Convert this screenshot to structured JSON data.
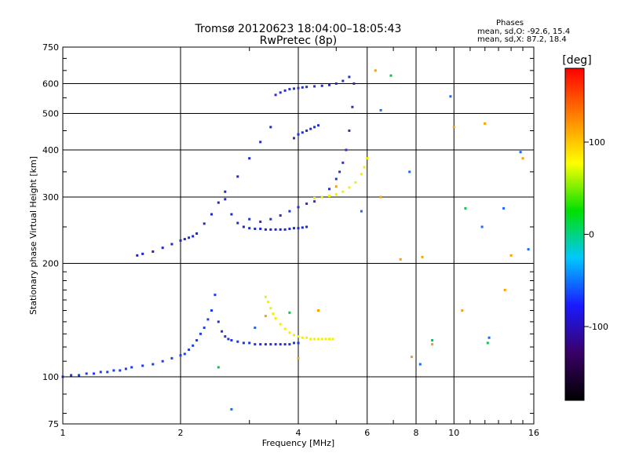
{
  "chart_data": {
    "type": "scatter",
    "title": "Tromsø 20120623 18:04:00–18:05:43",
    "subtitle": "RwPretec (8p)",
    "stats": {
      "header": "Phases",
      "line_o": "mean, sd,O: -92.6, 15.4",
      "line_x": "mean, sd,X:  87.2, 18.4"
    },
    "xlabel": "Frequency [MHz]",
    "ylabel": "Stationary phase Virtual Height [km]",
    "x_scale": "log",
    "y_scale": "log",
    "xlim": [
      1,
      16
    ],
    "ylim": [
      75,
      750
    ],
    "x_ticks": [
      1,
      2,
      4,
      6,
      8,
      10,
      16
    ],
    "x_tick_labels": [
      "1",
      "2",
      "4",
      "6",
      "8",
      "10",
      "16"
    ],
    "y_ticks": [
      75,
      100,
      200,
      300,
      400,
      500,
      600,
      750
    ],
    "y_tick_labels": [
      "75",
      "100",
      "200",
      "300",
      "400",
      "500",
      "600",
      "750"
    ],
    "grid": true,
    "colorbar": {
      "label": "[deg]",
      "range": [
        -180,
        180
      ],
      "ticks": [
        100,
        0,
        -100
      ],
      "tick_labels": [
        "100",
        "0",
        "-100"
      ],
      "colors": [
        "#000000",
        "#3a0066",
        "#1a1aff",
        "#00c8ff",
        "#00e000",
        "#ffff00",
        "#ff8000",
        "#ff0000"
      ]
    },
    "series": [
      {
        "phase": -100,
        "color": "#1e3cf0",
        "x": [
          1.0,
          1.05,
          1.1,
          1.15,
          1.2,
          1.25,
          1.3,
          1.35,
          1.4,
          1.45,
          1.5,
          1.6,
          1.7,
          1.8,
          1.9,
          2.0,
          2.05,
          2.1,
          2.15,
          2.2,
          2.25,
          2.3,
          2.35,
          2.4,
          2.45
        ],
        "y": [
          100,
          101,
          101,
          102,
          102,
          103,
          103,
          104,
          104,
          105,
          106,
          107,
          108,
          110,
          112,
          114,
          115,
          118,
          121,
          125,
          130,
          135,
          142,
          150,
          165
        ]
      },
      {
        "phase": -100,
        "color": "#1e32e6",
        "x": [
          2.5,
          2.55,
          2.6,
          2.65,
          2.7,
          2.8,
          2.9,
          3.0,
          3.1,
          3.2,
          3.3,
          3.4,
          3.5,
          3.6,
          3.7,
          3.8,
          3.9,
          4.0
        ],
        "y": [
          140,
          132,
          128,
          126,
          125,
          124,
          123,
          123,
          122,
          122,
          122,
          122,
          122,
          122,
          122,
          122,
          123,
          123
        ]
      },
      {
        "phase": 100,
        "color": "#f0f000",
        "x": [
          3.3,
          3.35,
          3.4,
          3.45,
          3.5,
          3.6,
          3.7,
          3.8,
          3.9,
          4.0,
          4.1,
          4.2,
          4.3,
          4.4,
          4.5,
          4.6,
          4.7,
          4.8,
          4.9
        ],
        "y": [
          163,
          158,
          152,
          147,
          143,
          138,
          134,
          131,
          129,
          128,
          127,
          127,
          126,
          126,
          126,
          126,
          126,
          126,
          126
        ]
      },
      {
        "phase": -110,
        "color": "#1e28d2",
        "x": [
          2.6,
          2.7,
          2.8,
          2.9,
          3.0,
          3.1,
          3.2,
          3.3,
          3.4,
          3.5,
          3.6,
          3.7,
          3.8,
          3.9,
          4.0,
          4.1,
          4.2
        ],
        "y": [
          296,
          270,
          256,
          250,
          248,
          247,
          247,
          246,
          246,
          246,
          246,
          246,
          247,
          248,
          248,
          249,
          250
        ]
      },
      {
        "phase": -110,
        "color": "#2832c8",
        "x": [
          3.0,
          3.2,
          3.4,
          3.6,
          3.8,
          4.0,
          4.2,
          4.4,
          4.6,
          4.8,
          5.0,
          5.1,
          5.2,
          5.3,
          5.4,
          5.5,
          5.55
        ],
        "y": [
          262,
          258,
          262,
          268,
          275,
          282,
          288,
          292,
          300,
          315,
          335,
          350,
          370,
          400,
          450,
          520,
          600
        ]
      },
      {
        "phase": 100,
        "color": "#f0f000",
        "x": [
          4.4,
          4.6,
          4.8,
          5.0,
          5.2,
          5.4,
          5.6,
          5.8,
          5.9,
          6.0
        ],
        "y": [
          298,
          300,
          302,
          305,
          310,
          318,
          328,
          345,
          360,
          380
        ]
      },
      {
        "phase": -110,
        "color": "#1e28c8",
        "x": [
          1.55,
          1.6,
          1.7,
          1.8,
          1.9,
          2.0,
          2.05,
          2.1,
          2.15,
          2.2,
          2.3,
          2.4,
          2.5,
          2.6,
          2.8,
          3.0,
          3.2,
          3.4
        ],
        "y": [
          210,
          212,
          215,
          220,
          225,
          230,
          232,
          234,
          236,
          240,
          255,
          270,
          290,
          310,
          340,
          380,
          420,
          460
        ]
      },
      {
        "phase": -110,
        "color": "#2830c8",
        "x": [
          3.5,
          3.6,
          3.7,
          3.8,
          3.9,
          4.0,
          4.1,
          4.2,
          4.4,
          4.6,
          4.8,
          5.0,
          5.2,
          5.4
        ],
        "y": [
          560,
          568,
          575,
          580,
          582,
          584,
          586,
          588,
          590,
          592,
          595,
          600,
          610,
          625
        ]
      },
      {
        "phase": -105,
        "color": "#1e30d8",
        "x": [
          3.9,
          4.0,
          4.1,
          4.2,
          4.3,
          4.4,
          4.5
        ],
        "y": [
          430,
          440,
          445,
          450,
          455,
          460,
          465
        ]
      },
      {
        "phase": 60,
        "color": "#ffa000",
        "x": [
          3.3,
          4.0,
          4.5,
          5.0,
          6.3,
          6.5,
          7.3,
          7.8,
          8.3,
          8.8,
          10.0,
          10.5,
          12.0,
          13.5,
          14.0,
          15.0
        ],
        "y": [
          145,
          112,
          150,
          320,
          650,
          300,
          205,
          113,
          208,
          122,
          460,
          150,
          470,
          170,
          210,
          380
        ]
      },
      {
        "phase": -80,
        "color": "#1e64ff",
        "x": [
          2.7,
          3.1,
          5.8,
          6.5,
          7.7,
          8.2,
          9.8,
          11.8,
          12.3,
          13.4,
          14.8,
          15.5
        ],
        "y": [
          82,
          135,
          275,
          510,
          350,
          108,
          555,
          250,
          127,
          280,
          395,
          218
        ]
      },
      {
        "phase": 10,
        "color": "#00c850",
        "x": [
          2.5,
          3.8,
          6.9,
          8.8,
          10.7,
          12.2
        ],
        "y": [
          106,
          148,
          630,
          125,
          280,
          123
        ]
      }
    ]
  }
}
